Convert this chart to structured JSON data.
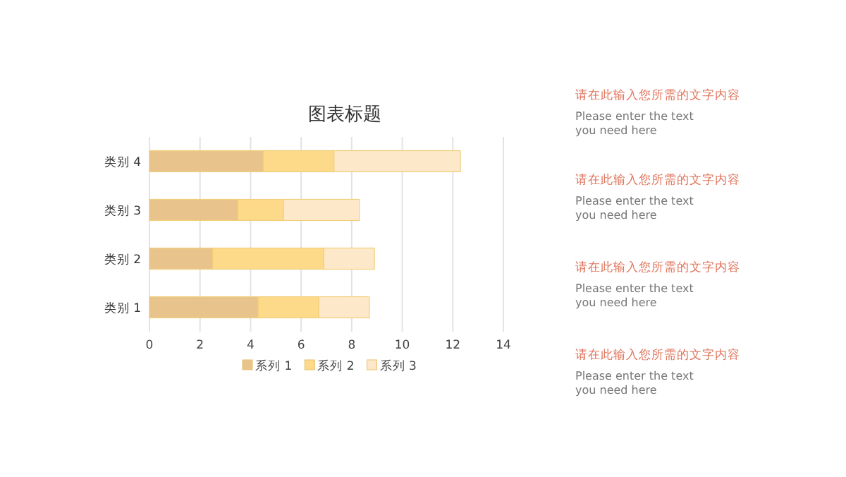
{
  "chart_data": {
    "type": "bar",
    "orientation": "horizontal",
    "stacked": true,
    "title": "图表标题",
    "categories": [
      "类别 4",
      "类别 3",
      "类别 2",
      "类别 1"
    ],
    "series": [
      {
        "name": "系列 1",
        "color": "#e8c48c",
        "values": [
          4.5,
          3.5,
          2.5,
          4.3
        ]
      },
      {
        "name": "系列 2",
        "color": "#fdd98a",
        "values": [
          2.8,
          1.8,
          4.4,
          2.4
        ]
      },
      {
        "name": "系列 3",
        "color": "#fde9c9",
        "values": [
          5,
          3,
          2,
          2
        ]
      }
    ],
    "xlim": [
      0,
      14
    ],
    "xticks": [
      0,
      2,
      4,
      6,
      8,
      10,
      12,
      14
    ],
    "grid": "x",
    "legend": "bottom",
    "annotations": [
      "请在此输入您所需的文字内容",
      "Please enter the text\nyou need here",
      "请在此输入您所需的文字内容",
      "Please enter the text\nyou need here",
      "请在此输入您所需的文字内容",
      "Please enter the text\nyou need here",
      "请在此输入您所需的文字内容",
      "Please enter the text\nyou need here"
    ]
  }
}
